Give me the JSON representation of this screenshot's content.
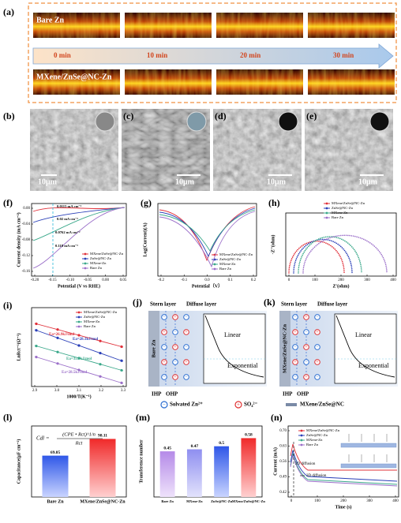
{
  "panel_a": {
    "label": "(a)",
    "top_sample": "Bare Zn",
    "times": [
      "0 min",
      "10 min",
      "20 min",
      "30 min"
    ],
    "bottom_sample": "MXene/ZnSe@NC-Zn"
  },
  "sem": [
    {
      "label": "(b)",
      "scale": "10μm"
    },
    {
      "label": "(c)",
      "scale": "10μm"
    },
    {
      "label": "(d)",
      "scale": "10μm"
    },
    {
      "label": "(e)",
      "scale": "10μm"
    }
  ],
  "sample_colors": [
    "#e0303a",
    "#2a3fb8",
    "#3aa88a",
    "#9b6fc9"
  ],
  "panel_f": {
    "label": "(f)",
    "y_label": "Current density (mA cm⁻²)",
    "x_label": "Potential (V vs RHE)",
    "xticks": [
      "-0.20",
      "-0.15",
      "-0.10",
      "-0.05",
      "0.00",
      "0.05"
    ],
    "yticks": [
      "0.00",
      "-0.04",
      "-0.08",
      "-0.12",
      "-0.16"
    ],
    "annotations": [
      "0.0115 mA cm⁻²",
      "0.02 mA cm⁻²",
      "0.0762 mA cm⁻²",
      "0.118 mA cm⁻²"
    ],
    "legend": [
      "MXene/ZnSe@NC-Zn",
      "ZnSe@NC-Zn",
      "MXene-Zn",
      "Bare Zn"
    ]
  },
  "panel_g": {
    "label": "(g)",
    "y_label": "Log(Current)(A)",
    "x_label": "Potential（V）",
    "xticks": [
      "-0.2",
      "-0.1",
      "0.0",
      "0.1",
      "0.2"
    ],
    "yticks": [],
    "legend": [
      "MXene/ZnSe@NC-Zn",
      "ZnSe@NC-Zn",
      "MXene-Zn",
      "Bare Zn"
    ]
  },
  "panel_h": {
    "label": "(h)",
    "y_label": "-Z''(ohm)",
    "x_label": "Z'(ohm)",
    "xticks": [
      "0",
      "100",
      "200",
      "300",
      "400"
    ],
    "yticks": [],
    "legend": [
      "MXene/ZnSe@NC-Zn",
      "ZnSe@NC-Zn",
      "MXene-Zn",
      "Bare Zn"
    ]
  },
  "panel_i": {
    "label": "(i)",
    "y_label": "LnRct⁻¹(Ω⁻¹)",
    "x_label": "1000/T(K⁻¹)",
    "xticks": [
      "2.9",
      "3.0",
      "3.1",
      "3.2",
      "3.3"
    ],
    "yticks": [],
    "annotations": [
      "Ea=26.9kJ/mol",
      "Ea=28.1kJ/mol",
      "Ea=35.9kJ/mol",
      "Ea=28.5kJ/mol"
    ],
    "legend": [
      "MXene/ZnSe@NC-Zn",
      "ZnSe@NC-Zn",
      "MXene-Zn",
      "Bare Zn"
    ]
  },
  "panel_j": {
    "label": "(j)",
    "stern": "Stern layer",
    "diffuse": "Diffuse layer",
    "electrode": "Bare Zn",
    "linear": "Linear",
    "exponential": "Exponential",
    "ihp": "IHP",
    "ohp": "OHP"
  },
  "panel_k": {
    "label": "(k)",
    "stern": "Stern layer",
    "diffuse": "Diffuse layer",
    "electrode": "MXene/ZnSe@NC-Zn",
    "linear": "Linear",
    "exponential": "Exponential",
    "ihp": "IHP",
    "ohp": "OHP"
  },
  "ion_legend": [
    "Solvated Zn²⁺",
    "SO₄²⁻",
    "MXene/ZnSe@NC"
  ],
  "panel_l": {
    "label": "(l)",
    "y_label": "Capacitance(μF cm⁻²)",
    "formula_lhs": "Cdl =",
    "formula_num": "(CPE • Rct)^1/n",
    "formula_den": "Rct",
    "categories": [
      "Bare Zn",
      "MXene/ZnSe@NC-Zn"
    ],
    "values": [
      69.85,
      98.11
    ],
    "ylim": [
      0,
      120
    ]
  },
  "panel_m": {
    "label": "(m)",
    "y_label": "Transference number",
    "categories": [
      "Bare Zn",
      "MXene-Zn",
      "ZnSe@NC-Zn",
      "MXene/ZnSe@NC-Zn"
    ],
    "values": [
      0.45,
      0.47,
      0.5,
      0.58
    ],
    "ylim": [
      0,
      0.7
    ]
  },
  "panel_n": {
    "label": "(n)",
    "y_label": "Current (mA)",
    "x_label": "Time (s)",
    "xticks": [
      "0",
      "100",
      "200",
      "300",
      "400"
    ],
    "yticks": [
      "0.70",
      "0.63",
      "0.56",
      "0.49",
      "0.42"
    ],
    "annotations": [
      "2D diffusion",
      "3D diffusion"
    ],
    "legend": [
      "MXene/ZnSe@NC-Zn",
      "ZnSe@NC-Zn",
      "MXene-Zn",
      "Bare Zn"
    ]
  }
}
